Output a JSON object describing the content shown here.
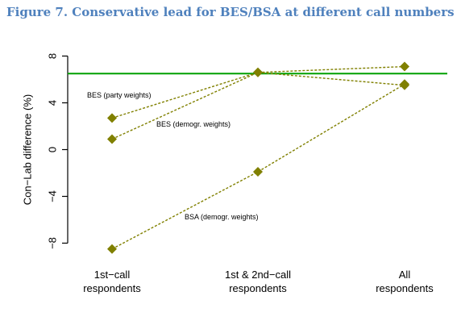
{
  "figure": {
    "title": "Figure 7. Conservative lead for BES/BSA at different call numbers"
  },
  "chart_data": {
    "type": "line",
    "ylabel": "Con−Lab difference (%)",
    "ylim": [
      -9,
      8.6
    ],
    "yticks": [
      -8,
      -4,
      0,
      4,
      8
    ],
    "ytick_labels": [
      "−8",
      "−4",
      "0",
      "4",
      "8"
    ],
    "categories": [
      [
        "1st−call",
        "respondents"
      ],
      [
        "1st & 2nd−call",
        "respondents"
      ],
      [
        "All",
        "respondents"
      ]
    ],
    "reference_line": {
      "y": 6.5,
      "color": "#00a000"
    },
    "marker_color": "#808000",
    "series": [
      {
        "name": "BES (party weights)",
        "values": [
          2.7,
          6.6,
          7.1
        ]
      },
      {
        "name": "BES (demogr. weights)",
        "values": [
          0.9,
          6.6,
          5.5
        ]
      },
      {
        "name": "BSA (demogr. weights)",
        "values": [
          -8.5,
          -1.9,
          5.6
        ]
      }
    ]
  }
}
